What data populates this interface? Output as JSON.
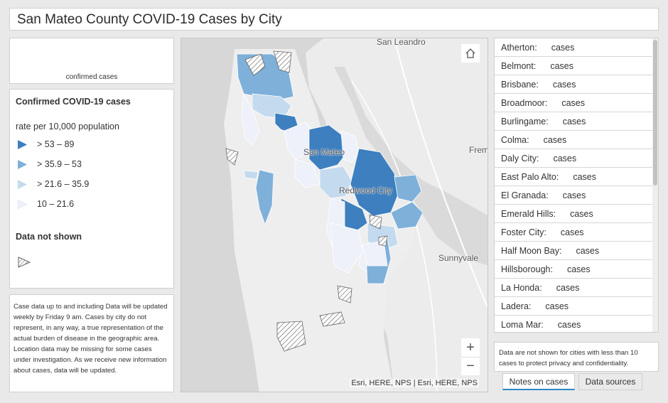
{
  "header": {
    "title": "San Mateo County COVID-19 Cases by City"
  },
  "summary": {
    "sub_label": "confirmed cases"
  },
  "legend": {
    "title": "Confirmed COVID-19 cases",
    "subtitle": "rate per 10,000 population",
    "classes": [
      {
        "label": "> 53 – 89",
        "color": "#3d7fbf"
      },
      {
        "label": "> 35.9 – 53",
        "color": "#7eb0da"
      },
      {
        "label": "> 21.6 – 35.9",
        "color": "#c4daee"
      },
      {
        "label": "10 – 21.6",
        "color": "#eef0fa"
      }
    ],
    "not_shown_title": "Data not shown"
  },
  "notes": {
    "text": "Case data up to and including            Data will be updated weekly by Friday 9 am. Cases by city do not represent, in any way, a true representation of the actual burden of disease in the geographic area. Location data may be missing for some cases under investigation. As we receive new information about cases, data will be updated."
  },
  "map": {
    "labels": {
      "san_leandro": "San Leandro",
      "san_mateo": "San Mateo",
      "fremont": "Frem",
      "redwood_city": "Redwood City",
      "sunnyvale": "Sunnyvale"
    },
    "zoom_in": "+",
    "zoom_out": "−",
    "attribution": "Esri, HERE, NPS | Esri, HERE, NPS"
  },
  "cities": [
    {
      "name": "Atherton:",
      "cases": "cases"
    },
    {
      "name": "Belmont:",
      "cases": "cases"
    },
    {
      "name": "Brisbane:",
      "cases": "cases"
    },
    {
      "name": "Broadmoor:",
      "cases": "cases"
    },
    {
      "name": "Burlingame:",
      "cases": "cases"
    },
    {
      "name": "Colma:",
      "cases": "cases"
    },
    {
      "name": "Daly City:",
      "cases": "cases"
    },
    {
      "name": "East Palo Alto:",
      "cases": "cases"
    },
    {
      "name": "El Granada:",
      "cases": "cases"
    },
    {
      "name": "Emerald Hills:",
      "cases": "cases"
    },
    {
      "name": "Foster City:",
      "cases": "cases"
    },
    {
      "name": "Half Moon Bay:",
      "cases": "cases"
    },
    {
      "name": "Hillsborough:",
      "cases": "cases"
    },
    {
      "name": "La Honda:",
      "cases": "cases"
    },
    {
      "name": "Ladera:",
      "cases": "cases"
    },
    {
      "name": "Loma Mar:",
      "cases": "cases"
    }
  ],
  "privacy": {
    "text": "Data are not shown for cities with less than 10 cases to protect privacy and confidentiality."
  },
  "tabs": {
    "notes": "Notes on cases",
    "sources": "Data sources"
  }
}
